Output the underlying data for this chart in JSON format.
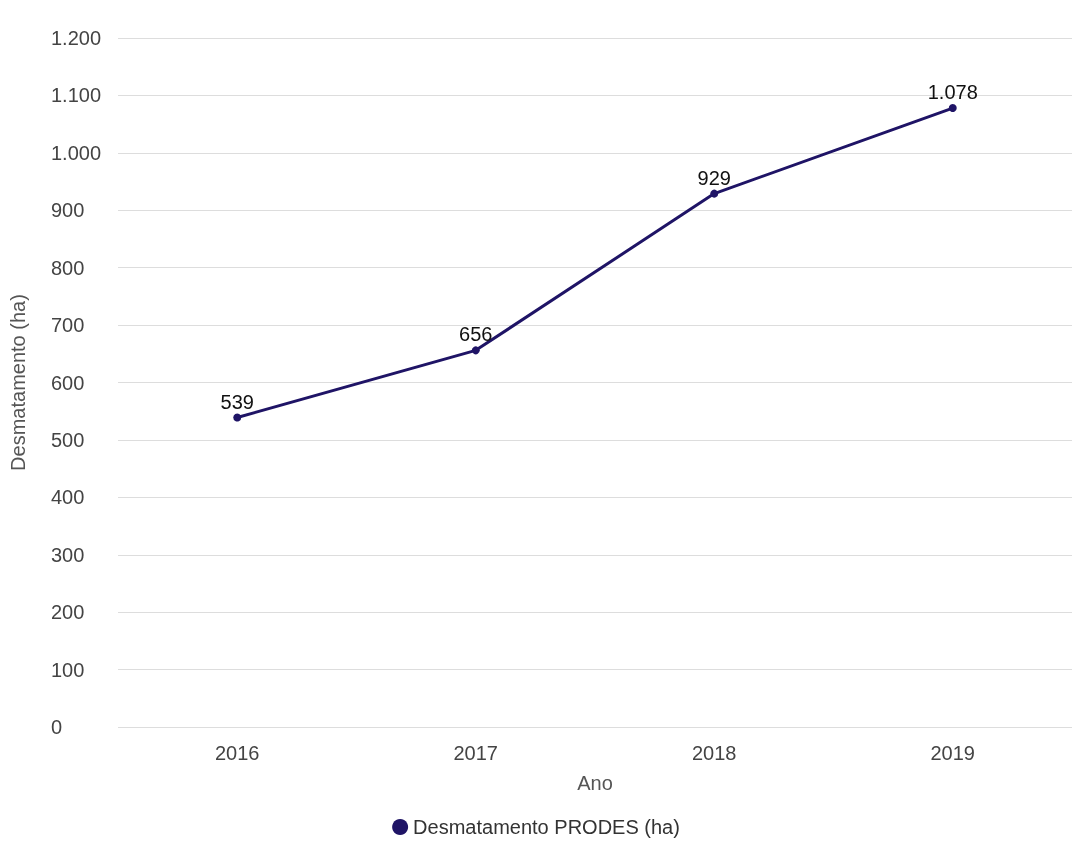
{
  "chart_data": {
    "type": "line",
    "xlabel": "Ano",
    "ylabel": "Desmatamento (ha)",
    "categories": [
      "2016",
      "2017",
      "2018",
      "2019"
    ],
    "series": [
      {
        "name": "Desmatamento PRODES (ha)",
        "color": "#1f1466",
        "values": [
          539,
          656,
          929,
          1078
        ],
        "value_labels": [
          "539",
          "656",
          "929",
          "1.078"
        ]
      }
    ],
    "ylim": [
      0,
      1200
    ],
    "yticks": [
      0,
      100,
      200,
      300,
      400,
      500,
      600,
      700,
      800,
      900,
      {
        "value": 1000,
        "label": "1.000"
      },
      {
        "value": 1100,
        "label": "1.100"
      },
      {
        "value": 1200,
        "label": "1.200"
      }
    ],
    "grid": "y",
    "legend": "bottom",
    "marker": "circle",
    "line_style": "solid"
  }
}
